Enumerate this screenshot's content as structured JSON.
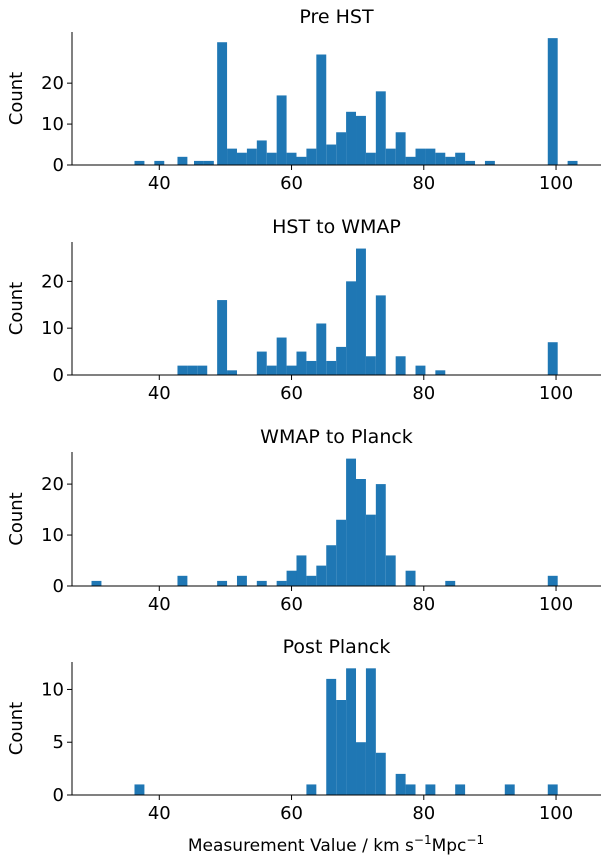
{
  "figure": {
    "xlabel_main": "Measurement Value / km s",
    "xlabel_exp1": "−1",
    "xlabel_mid": "Mpc",
    "xlabel_exp2": "−1",
    "bar_color": "#1f77b4"
  },
  "chart_data": [
    {
      "type": "bar",
      "title": "Pre HST",
      "ylabel": "Count",
      "xlim": [
        26.8,
        106.8
      ],
      "ylim": [
        0,
        32.5
      ],
      "xticks": [
        40,
        60,
        80,
        100
      ],
      "yticks": [
        0,
        10,
        20
      ],
      "bin_width": 1.5,
      "bins": [
        {
          "x": 37,
          "y": 1
        },
        {
          "x": 40,
          "y": 1
        },
        {
          "x": 43.5,
          "y": 2
        },
        {
          "x": 46,
          "y": 1
        },
        {
          "x": 47.5,
          "y": 1
        },
        {
          "x": 49.5,
          "y": 30
        },
        {
          "x": 51,
          "y": 4
        },
        {
          "x": 52.5,
          "y": 3
        },
        {
          "x": 54,
          "y": 4
        },
        {
          "x": 55.5,
          "y": 6
        },
        {
          "x": 57,
          "y": 3
        },
        {
          "x": 58.5,
          "y": 17
        },
        {
          "x": 60,
          "y": 3
        },
        {
          "x": 61.5,
          "y": 2
        },
        {
          "x": 63,
          "y": 4
        },
        {
          "x": 64.5,
          "y": 27
        },
        {
          "x": 66,
          "y": 5
        },
        {
          "x": 67.5,
          "y": 8
        },
        {
          "x": 69,
          "y": 13
        },
        {
          "x": 70.5,
          "y": 12
        },
        {
          "x": 72,
          "y": 3
        },
        {
          "x": 73.5,
          "y": 18
        },
        {
          "x": 75,
          "y": 4
        },
        {
          "x": 76.5,
          "y": 8
        },
        {
          "x": 78,
          "y": 2
        },
        {
          "x": 79.5,
          "y": 4
        },
        {
          "x": 81,
          "y": 4
        },
        {
          "x": 82.5,
          "y": 3
        },
        {
          "x": 84,
          "y": 2
        },
        {
          "x": 85.5,
          "y": 3
        },
        {
          "x": 87,
          "y": 1
        },
        {
          "x": 90,
          "y": 1
        },
        {
          "x": 99.5,
          "y": 31
        },
        {
          "x": 102.5,
          "y": 1
        }
      ]
    },
    {
      "type": "bar",
      "title": "HST to WMAP",
      "ylabel": "Count",
      "xlim": [
        26.8,
        106.8
      ],
      "ylim": [
        0,
        28.4
      ],
      "xticks": [
        40,
        60,
        80,
        100
      ],
      "yticks": [
        0,
        10,
        20
      ],
      "bin_width": 1.5,
      "bins": [
        {
          "x": 43.5,
          "y": 2
        },
        {
          "x": 45,
          "y": 2
        },
        {
          "x": 46.5,
          "y": 2
        },
        {
          "x": 49.5,
          "y": 16
        },
        {
          "x": 51,
          "y": 1
        },
        {
          "x": 55.5,
          "y": 5
        },
        {
          "x": 57,
          "y": 2
        },
        {
          "x": 58.5,
          "y": 8
        },
        {
          "x": 60,
          "y": 2
        },
        {
          "x": 61.5,
          "y": 5
        },
        {
          "x": 63,
          "y": 3
        },
        {
          "x": 64.5,
          "y": 11
        },
        {
          "x": 66,
          "y": 3
        },
        {
          "x": 67.5,
          "y": 6
        },
        {
          "x": 69,
          "y": 20
        },
        {
          "x": 70.5,
          "y": 27
        },
        {
          "x": 72,
          "y": 4
        },
        {
          "x": 73.5,
          "y": 17
        },
        {
          "x": 76.5,
          "y": 4
        },
        {
          "x": 79.5,
          "y": 2
        },
        {
          "x": 82.5,
          "y": 1
        },
        {
          "x": 99.5,
          "y": 7
        }
      ]
    },
    {
      "type": "bar",
      "title": "WMAP to Planck",
      "ylabel": "Count",
      "xlim": [
        26.8,
        106.8
      ],
      "ylim": [
        0,
        26.3
      ],
      "xticks": [
        40,
        60,
        80,
        100
      ],
      "yticks": [
        0,
        10,
        20
      ],
      "bin_width": 1.5,
      "bins": [
        {
          "x": 30.5,
          "y": 1
        },
        {
          "x": 43.5,
          "y": 2
        },
        {
          "x": 49.5,
          "y": 1
        },
        {
          "x": 52.5,
          "y": 2
        },
        {
          "x": 55.5,
          "y": 1
        },
        {
          "x": 58.5,
          "y": 1
        },
        {
          "x": 60,
          "y": 3
        },
        {
          "x": 61.5,
          "y": 6
        },
        {
          "x": 63,
          "y": 2
        },
        {
          "x": 64.5,
          "y": 4
        },
        {
          "x": 66,
          "y": 8
        },
        {
          "x": 67.5,
          "y": 13
        },
        {
          "x": 69,
          "y": 25
        },
        {
          "x": 70.5,
          "y": 21
        },
        {
          "x": 72,
          "y": 14
        },
        {
          "x": 73.5,
          "y": 20
        },
        {
          "x": 75,
          "y": 6
        },
        {
          "x": 78,
          "y": 3
        },
        {
          "x": 84,
          "y": 1
        },
        {
          "x": 99.5,
          "y": 2
        }
      ]
    },
    {
      "type": "bar",
      "title": "Post Planck",
      "ylabel": "Count",
      "xlabel": "Measurement Value / km s−1Mpc−1",
      "xlim": [
        26.8,
        106.8
      ],
      "ylim": [
        0,
        12.6
      ],
      "xticks": [
        40,
        60,
        80,
        100
      ],
      "yticks": [
        0,
        5,
        10
      ],
      "bin_width": 1.5,
      "bins": [
        {
          "x": 37,
          "y": 1
        },
        {
          "x": 63,
          "y": 1
        },
        {
          "x": 66,
          "y": 11
        },
        {
          "x": 67.5,
          "y": 9
        },
        {
          "x": 69,
          "y": 12
        },
        {
          "x": 70.5,
          "y": 5
        },
        {
          "x": 72,
          "y": 12
        },
        {
          "x": 73.5,
          "y": 4
        },
        {
          "x": 76.5,
          "y": 2
        },
        {
          "x": 78,
          "y": 1
        },
        {
          "x": 81,
          "y": 1
        },
        {
          "x": 85.5,
          "y": 1
        },
        {
          "x": 93,
          "y": 1
        },
        {
          "x": 99.5,
          "y": 1
        }
      ]
    }
  ]
}
